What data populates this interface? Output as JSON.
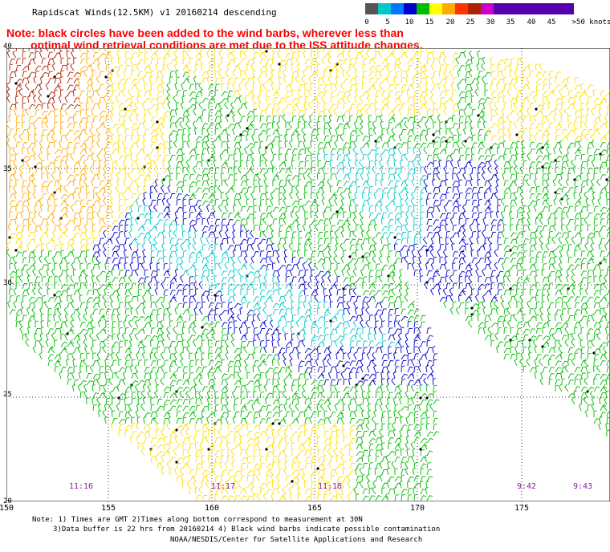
{
  "title": "Rapidscat Winds(12.5KM) v1 20160214 descending",
  "note": {
    "line1": "Note: black circles have been added to the wind barbs, wherever less than",
    "line2": "optimal wind retrieval conditions are met due to the ISS attitude changes."
  },
  "colorbar": {
    "unit_label": ">50 knots",
    "entries": [
      {
        "label": "0",
        "color": "#555555"
      },
      {
        "label": "5",
        "color": "#00c8c8"
      },
      {
        "label": "10",
        "color": "#0078ff"
      },
      {
        "label": "15",
        "color": "#0000cc"
      },
      {
        "label": "20",
        "color": "#00bb00"
      },
      {
        "label": "25",
        "color": "#ffff00"
      },
      {
        "label": "30",
        "color": "#ffaa00"
      },
      {
        "label": "35",
        "color": "#ff3300"
      },
      {
        "label": "40",
        "color": "#aa2200"
      },
      {
        "label": "45",
        "color": "#cc00cc"
      },
      {
        "label": ">50 knots",
        "color": "#5500aa"
      }
    ]
  },
  "map": {
    "lat_labels": [
      "40",
      "35",
      "30",
      "25",
      "20"
    ],
    "lon_labels": [
      "150",
      "155",
      "160",
      "165",
      "170",
      "175"
    ],
    "pass_times": [
      "11:16",
      "11:17",
      "11:18",
      "9:42",
      "9:43"
    ],
    "wind_colors": {
      "cyan": "#00c8c8",
      "blue": "#0000cc",
      "lightblue": "#0078ff",
      "green": "#00bb00",
      "yellow": "#ffdd00",
      "orange": "#ffaa00",
      "red": "#ff3300",
      "darkred": "#aa2200",
      "purple": "#cc00cc"
    }
  },
  "footer": {
    "line1": "Note: 1) Times are GMT 2)Times along bottom correspond to measurement at 30N",
    "line2": "3)Data buffer is 22 hrs from 20160214 4) Black wind barbs indicate possible contamination",
    "line3": "NOAA/NESDIS/Center for Satellite Applications and Research"
  }
}
